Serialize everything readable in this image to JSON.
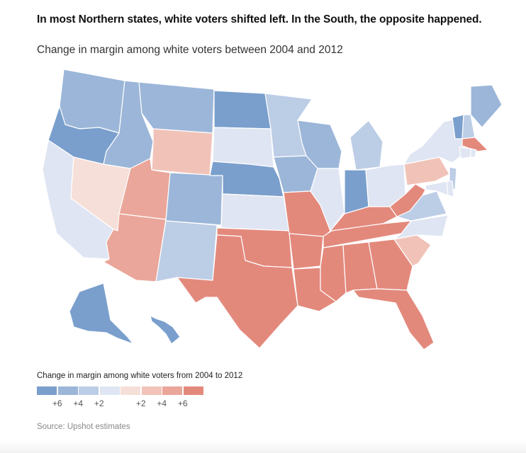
{
  "headline": "In most Northern states, white voters shifted left. In the South, the opposite happened.",
  "subtitle": "Change in margin among white voters between 2004 and 2012",
  "legend": {
    "title": "Change in margin among white voters from 2004 to 2012",
    "bins": [
      {
        "level": "dem6",
        "color": "#7a9fcd"
      },
      {
        "level": "dem4",
        "color": "#9bb6d8"
      },
      {
        "level": "dem2",
        "color": "#bccde6"
      },
      {
        "level": "dem0",
        "color": "#dfe5f2"
      },
      {
        "level": "rep0",
        "color": "#f6dfd8"
      },
      {
        "level": "rep2",
        "color": "#f1c3b8"
      },
      {
        "level": "rep4",
        "color": "#eaa69a"
      },
      {
        "level": "rep6",
        "color": "#e3897c"
      }
    ],
    "ticks": [
      {
        "label": "+6",
        "boundary": 1
      },
      {
        "label": "+4",
        "boundary": 2
      },
      {
        "label": "+2",
        "boundary": 3
      },
      {
        "label": "+2",
        "boundary": 5
      },
      {
        "label": "+4",
        "boundary": 6
      },
      {
        "label": "+6",
        "boundary": 7
      }
    ]
  },
  "source": "Source: Upshot estimates",
  "states": {
    "WA": "dem4",
    "OR": "dem6",
    "CA": "dem0",
    "NV": "rep0",
    "ID": "dem4",
    "MT": "dem4",
    "WY": "rep2",
    "UT": "rep4",
    "AZ": "rep4",
    "CO": "dem4",
    "NM": "dem2",
    "ND": "dem6",
    "SD": "dem0",
    "NE": "dem6",
    "KS": "dem0",
    "OK": "rep6",
    "TX": "rep6",
    "MN": "dem2",
    "IA": "dem4",
    "MO": "rep6",
    "AR": "rep6",
    "LA": "rep6",
    "WI": "dem4",
    "IL": "dem0",
    "MI": "dem2",
    "IN": "dem6",
    "OH": "dem0",
    "KY": "rep6",
    "TN": "rep6",
    "MS": "rep6",
    "AL": "rep6",
    "GA": "rep6",
    "FL": "rep6",
    "SC": "rep2",
    "NC": "dem0",
    "VA": "dem2",
    "WV": "rep6",
    "PA": "rep2",
    "NY": "dem0",
    "VT": "dem6",
    "NH": "dem2",
    "ME": "dem4",
    "MA": "rep6",
    "CT": "dem0",
    "RI": "dem0",
    "NJ": "dem2",
    "DE": "dem0",
    "MD": "dem0",
    "AK": "dem6",
    "HI": "dem6"
  }
}
